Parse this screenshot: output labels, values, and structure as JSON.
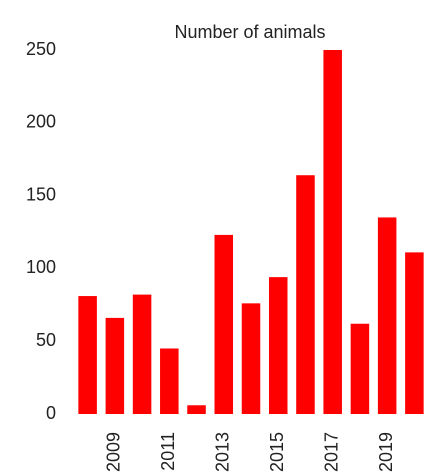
{
  "chart_data": {
    "type": "bar",
    "title": "Number of animals",
    "categories": [
      null,
      "2009",
      null,
      "2011",
      null,
      "2013",
      null,
      "2015",
      null,
      "2017",
      null,
      "2019",
      null
    ],
    "values": [
      81,
      66,
      82,
      45,
      6,
      123,
      76,
      94,
      164,
      250,
      62,
      135,
      111
    ],
    "color": "#ff0000",
    "ylim": [
      0,
      250
    ],
    "yticks": [
      0,
      50,
      100,
      150,
      200,
      250
    ],
    "grid": false
  }
}
